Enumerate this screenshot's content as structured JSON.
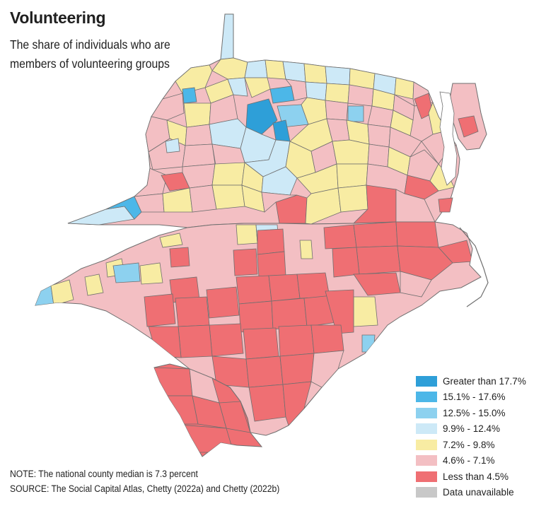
{
  "title": "Volunteering",
  "subtitle": "The share of individuals who are members of volunteering groups",
  "legend": [
    {
      "label": "Greater than 17.7%",
      "color": "#2e9fd8"
    },
    {
      "label": "15.1% - 17.6%",
      "color": "#4cb7e8"
    },
    {
      "label": "12.5% - 15.0%",
      "color": "#8dd1ef"
    },
    {
      "label": "9.9% - 12.4%",
      "color": "#cde9f7"
    },
    {
      "label": "7.2% - 9.8%",
      "color": "#f8eca3"
    },
    {
      "label": "4.6% - 7.1%",
      "color": "#f3bfc3"
    },
    {
      "label": "Less than 4.5%",
      "color": "#ef6f73"
    },
    {
      "label": "Data unavailable",
      "color": "#c8c8c8"
    }
  ],
  "note": "NOTE: The national county median is 7.3 percent",
  "source": "SOURCE: The Social Capital Atlas, Chetty (2022a) and Chetty (2022b)",
  "colors": {
    "county_border": "#6f6f6f",
    "background": "#ffffff"
  }
}
